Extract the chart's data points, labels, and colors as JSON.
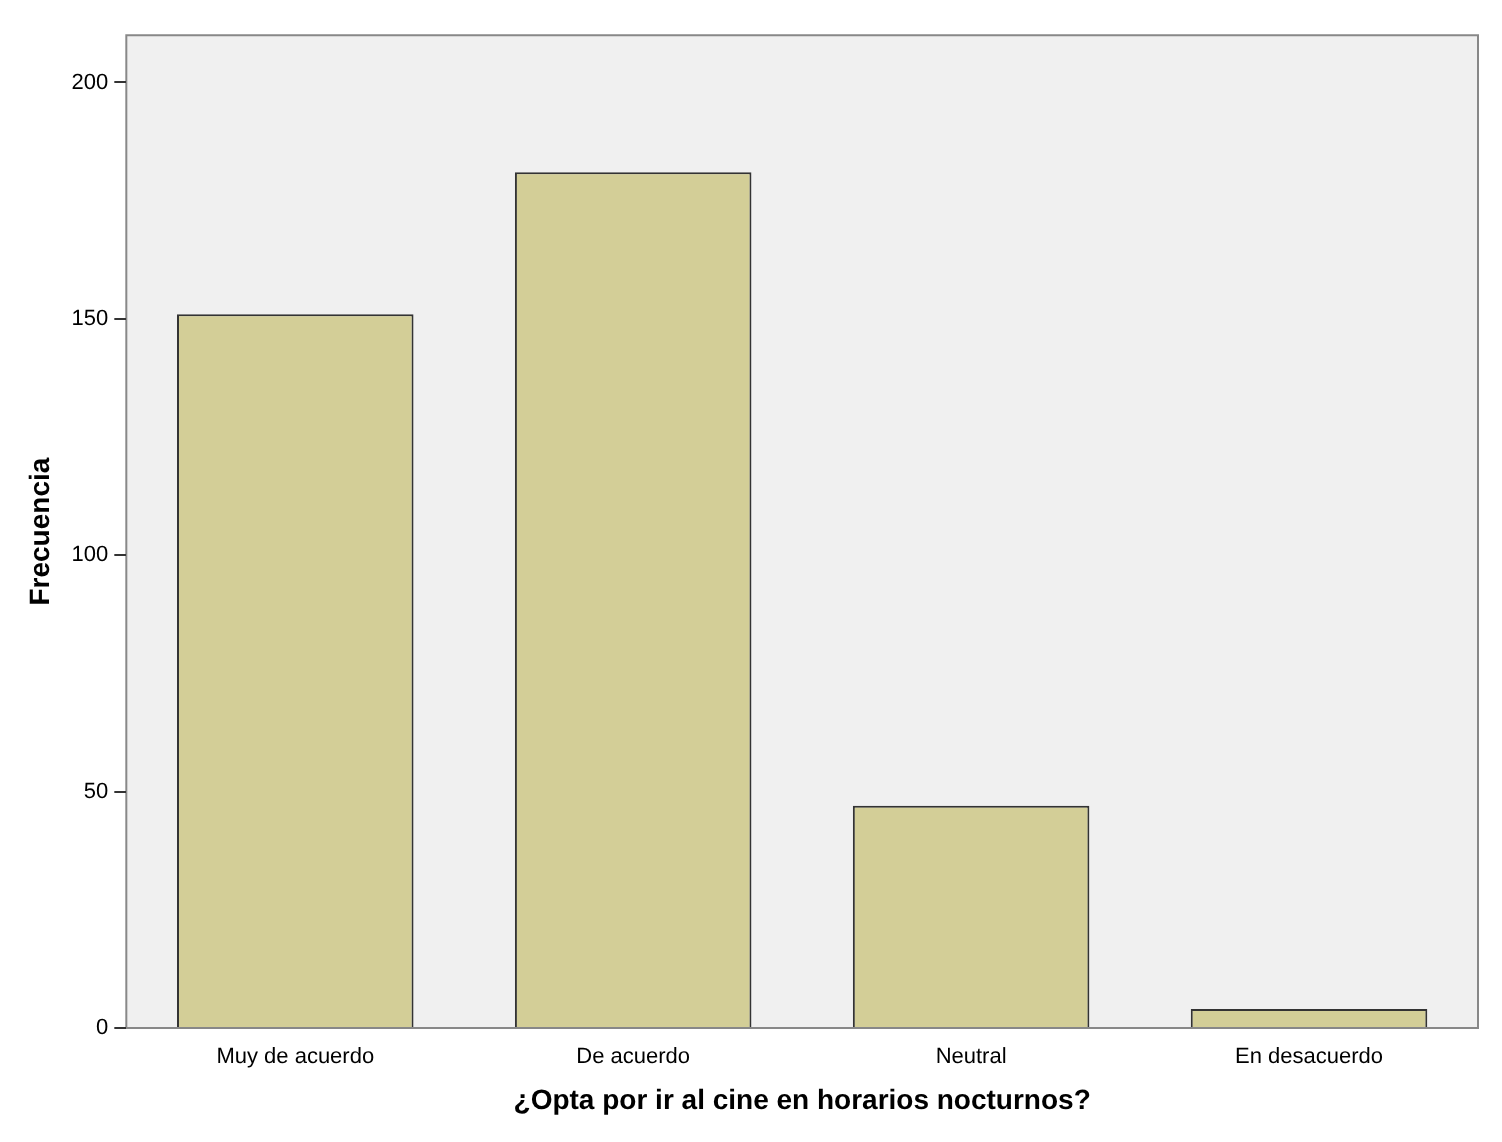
{
  "chart_data": {
    "type": "bar",
    "xlabel": "¿Opta por ir al cine en horarios nocturnos?",
    "ylabel": "Frecuencia",
    "categories": [
      "Muy de acuerdo",
      "De acuerdo",
      "Neutral",
      "En desacuerdo"
    ],
    "values": [
      151,
      181,
      47,
      4
    ],
    "color": "#d3ce97",
    "ylim": [
      0,
      210
    ],
    "yticks": [
      0,
      50,
      100,
      150,
      200
    ],
    "grid": false,
    "legend": false
  }
}
